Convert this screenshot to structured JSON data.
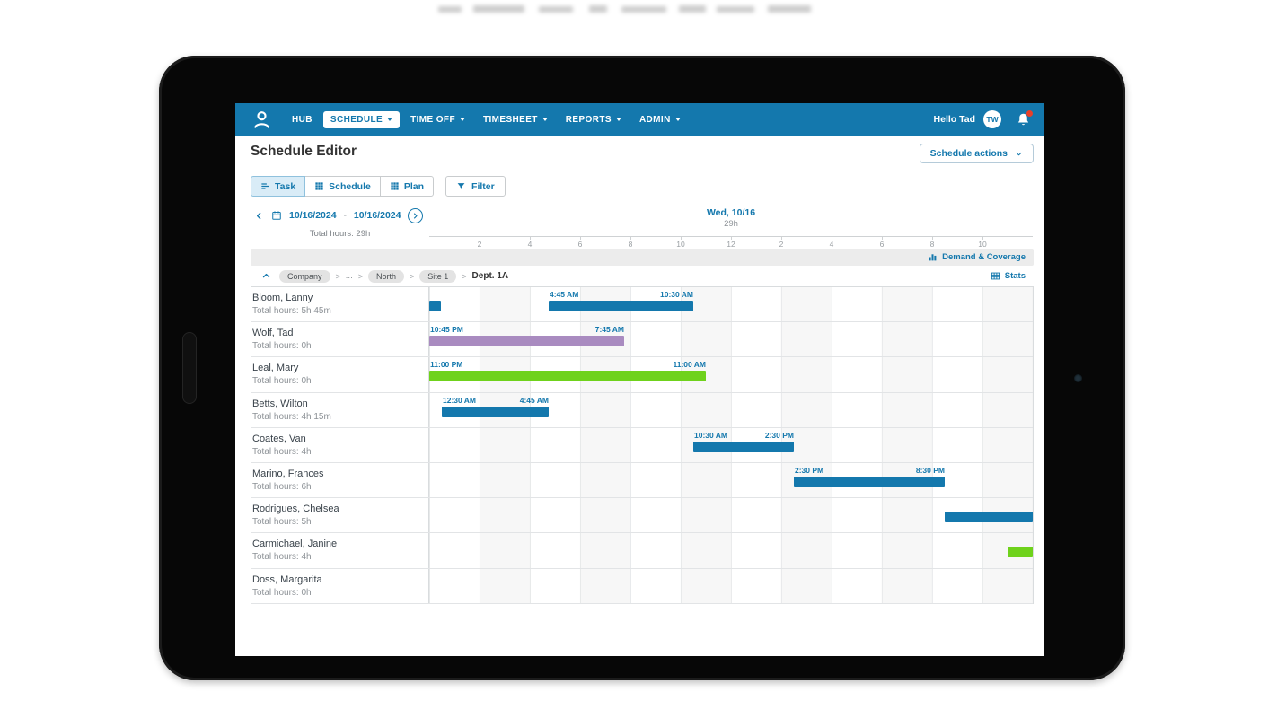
{
  "nav": {
    "items": [
      {
        "label": "HUB",
        "caret": false,
        "active": false
      },
      {
        "label": "SCHEDULE",
        "caret": true,
        "active": true
      },
      {
        "label": "TIME OFF",
        "caret": true,
        "active": false
      },
      {
        "label": "TIMESHEET",
        "caret": true,
        "active": false
      },
      {
        "label": "REPORTS",
        "caret": true,
        "active": false
      },
      {
        "label": "ADMIN",
        "caret": true,
        "active": false
      }
    ],
    "greeting": "Hello Tad",
    "avatar_initials": "TW"
  },
  "header": {
    "title": "Schedule Editor",
    "actions_label": "Schedule actions"
  },
  "view_tabs": [
    {
      "label": "Task",
      "icon": "task-icon",
      "active": true
    },
    {
      "label": "Schedule",
      "icon": "grid-icon",
      "active": false
    },
    {
      "label": "Plan",
      "icon": "grid-icon",
      "active": false
    }
  ],
  "filter": {
    "label": "Filter"
  },
  "date_nav": {
    "start_date": "10/16/2024",
    "end_date": "10/16/2024",
    "separator": "-",
    "total_hours": "Total hours: 29h",
    "day_label": "Wed, 10/16",
    "day_total": "29h"
  },
  "timeline": {
    "ticks": [
      "2",
      "4",
      "6",
      "8",
      "10",
      "12",
      "2",
      "4",
      "6",
      "8",
      "10"
    ],
    "hours": 24,
    "tick_interval_hours": 2
  },
  "coverage": {
    "label": "Demand & Coverage"
  },
  "breadcrumb": {
    "separator": ">",
    "items": [
      {
        "label": "Company",
        "pill": true
      },
      {
        "label": "...",
        "pill": false
      },
      {
        "label": "North",
        "pill": true
      },
      {
        "label": "Site 1",
        "pill": true
      },
      {
        "label": "Dept. 1A",
        "pill": false,
        "emphasis": true
      }
    ],
    "stats_label": "Stats"
  },
  "colors": {
    "brand_blue": "#1478ad",
    "bar_blue": "#1478ad",
    "bar_purple": "#a98bc0",
    "bar_green": "#6fd21c",
    "alert_red": "#e8402a"
  },
  "schedule": {
    "employees": [
      {
        "name": "Bloom, Lanny",
        "total": "Total hours: 5h 45m",
        "shifts": [
          {
            "start": 0,
            "end": 0.45,
            "color": "blue"
          },
          {
            "start": 4.75,
            "end": 10.5,
            "color": "blue",
            "start_label": "4:45 AM",
            "end_label": "10:30 AM"
          }
        ]
      },
      {
        "name": "Wolf, Tad",
        "total": "Total hours: 0h",
        "shifts": [
          {
            "start": 0,
            "end": 7.75,
            "color": "purple",
            "start_label": "10:45 PM",
            "end_label": "7:45 AM"
          }
        ]
      },
      {
        "name": "Leal, Mary",
        "total": "Total hours: 0h",
        "shifts": [
          {
            "start": 0,
            "end": 11,
            "color": "green",
            "start_label": "11:00 PM",
            "end_label": "11:00 AM"
          }
        ]
      },
      {
        "name": "Betts, Wilton",
        "total": "Total hours: 4h 15m",
        "shifts": [
          {
            "start": 0.5,
            "end": 4.75,
            "color": "blue",
            "start_label": "12:30 AM",
            "end_label": "4:45 AM"
          }
        ]
      },
      {
        "name": "Coates, Van",
        "total": "Total hours: 4h",
        "shifts": [
          {
            "start": 10.5,
            "end": 14.5,
            "color": "blue",
            "start_label": "10:30 AM",
            "end_label": "2:30 PM"
          }
        ]
      },
      {
        "name": "Marino, Frances",
        "total": "Total hours: 6h",
        "shifts": [
          {
            "start": 14.5,
            "end": 20.5,
            "color": "blue",
            "start_label": "2:30 PM",
            "end_label": "8:30 PM"
          }
        ]
      },
      {
        "name": "Rodrigues, Chelsea",
        "total": "Total hours: 5h",
        "shifts": [
          {
            "start": 20.5,
            "end": 24,
            "color": "blue"
          }
        ]
      },
      {
        "name": "Carmichael, Janine",
        "total": "Total hours: 4h",
        "shifts": [
          {
            "start": 23,
            "end": 24,
            "color": "green"
          }
        ]
      },
      {
        "name": "Doss, Margarita",
        "total": "Total hours: 0h",
        "shifts": []
      }
    ]
  }
}
